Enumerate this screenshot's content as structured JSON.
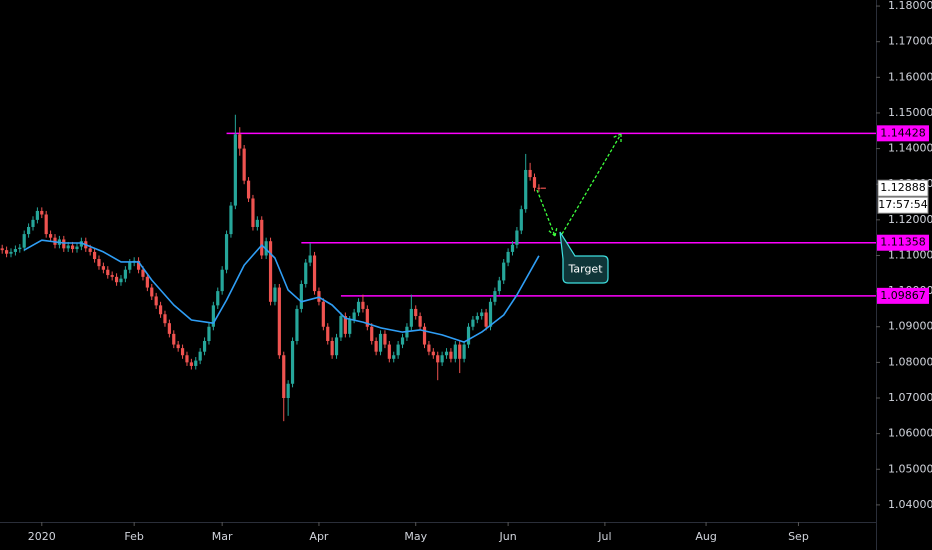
{
  "chart_data": {
    "type": "candlestick",
    "up_color": "#26a69a",
    "down_color": "#ef5350",
    "xlim": [
      -0.5,
      198.4
    ],
    "ylim": [
      1.0352,
      1.1817
    ],
    "xticks": [
      {
        "value": 9,
        "label": "2020"
      },
      {
        "value": 30,
        "label": "Feb"
      },
      {
        "value": 50,
        "label": "Mar"
      },
      {
        "value": 72,
        "label": "Apr"
      },
      {
        "value": 94,
        "label": "May"
      },
      {
        "value": 115,
        "label": "Jun"
      },
      {
        "value": 137,
        "label": "Jul"
      },
      {
        "value": 160,
        "label": "Aug"
      },
      {
        "value": 181,
        "label": "Sep"
      }
    ],
    "yticks": [
      {
        "value": 1.18,
        "label": "1.18000"
      },
      {
        "value": 1.17,
        "label": "1.17000"
      },
      {
        "value": 1.16,
        "label": "1.16000"
      },
      {
        "value": 1.15,
        "label": "1.15000"
      },
      {
        "value": 1.14,
        "label": "1.14000"
      },
      {
        "value": 1.13,
        "label": "1.13000"
      },
      {
        "value": 1.12,
        "label": "1.12000"
      },
      {
        "value": 1.11,
        "label": "1.11000"
      },
      {
        "value": 1.1,
        "label": "1.10000"
      },
      {
        "value": 1.09,
        "label": "1.09000"
      },
      {
        "value": 1.08,
        "label": "1.08000"
      },
      {
        "value": 1.07,
        "label": "1.07000"
      },
      {
        "value": 1.06,
        "label": "1.06000"
      },
      {
        "value": 1.05,
        "label": "1.05000"
      },
      {
        "value": 1.04,
        "label": "1.04000"
      }
    ],
    "open": [
      1.112,
      1.1115,
      1.1105,
      1.111,
      1.1118,
      1.1122,
      1.116,
      1.118,
      1.12,
      1.1225,
      1.1215,
      1.116,
      1.115,
      1.113,
      1.1145,
      1.112,
      1.1128,
      1.1118,
      1.1125,
      1.114,
      1.112,
      1.111,
      1.109,
      1.107,
      1.106,
      1.1045,
      1.104,
      1.1025,
      1.1035,
      1.106,
      1.108,
      1.1085,
      1.106,
      1.104,
      1.101,
      1.0985,
      1.096,
      1.0935,
      1.091,
      1.088,
      1.085,
      1.084,
      1.082,
      1.08,
      1.079,
      1.0805,
      1.083,
      1.086,
      1.09,
      1.096,
      1.1,
      1.106,
      1.116,
      1.124,
      1.144,
      1.14,
      1.131,
      1.126,
      1.118,
      1.12,
      1.11,
      1.114,
      1.097,
      1.101,
      1.082,
      1.07,
      1.074,
      1.086,
      1.095,
      1.102,
      1.108,
      1.11,
      1.1,
      1.097,
      1.09,
      1.086,
      1.082,
      1.087,
      1.093,
      1.088,
      1.092,
      1.094,
      1.097,
      1.095,
      1.09,
      1.086,
      1.083,
      1.088,
      1.085,
      1.081,
      1.082,
      1.085,
      1.087,
      1.09,
      1.095,
      1.093,
      1.09,
      1.085,
      1.083,
      1.082,
      1.08,
      1.082,
      1.083,
      1.081,
      1.085,
      1.081,
      1.085,
      1.09,
      1.092,
      1.093,
      1.094,
      1.09,
      1.097,
      1.1,
      1.103,
      1.108,
      1.111,
      1.113,
      1.117,
      1.123,
      1.134,
      1.132,
      1.129
    ],
    "high": [
      1.113,
      1.1125,
      1.112,
      1.1128,
      1.1132,
      1.117,
      1.119,
      1.121,
      1.1235,
      1.1235,
      1.1225,
      1.117,
      1.116,
      1.1155,
      1.1155,
      1.1138,
      1.1138,
      1.1135,
      1.115,
      1.115,
      1.113,
      1.112,
      1.11,
      1.108,
      1.107,
      1.1055,
      1.105,
      1.1045,
      1.107,
      1.109,
      1.1095,
      1.1095,
      1.107,
      1.105,
      1.102,
      1.0995,
      1.097,
      1.0945,
      1.092,
      1.089,
      1.086,
      1.085,
      1.083,
      1.081,
      1.0815,
      1.084,
      1.087,
      1.091,
      1.097,
      1.101,
      1.107,
      1.117,
      1.125,
      1.1495,
      1.146,
      1.141,
      1.132,
      1.127,
      1.121,
      1.121,
      1.115,
      1.115,
      1.102,
      1.102,
      1.083,
      1.075,
      1.087,
      1.096,
      1.103,
      1.109,
      1.1135,
      1.111,
      1.101,
      1.098,
      1.091,
      1.087,
      1.088,
      1.094,
      1.094,
      1.093,
      1.095,
      1.098,
      1.099,
      1.096,
      1.091,
      1.087,
      1.089,
      1.089,
      1.086,
      1.083,
      1.086,
      1.088,
      1.091,
      1.099,
      1.096,
      1.094,
      1.091,
      1.086,
      1.084,
      1.083,
      1.083,
      1.084,
      1.084,
      1.086,
      1.086,
      1.086,
      1.091,
      1.093,
      1.094,
      1.095,
      1.095,
      1.098,
      1.101,
      1.104,
      1.109,
      1.112,
      1.114,
      1.118,
      1.124,
      1.1385,
      1.136,
      1.133,
      1.13
    ],
    "low": [
      1.1105,
      1.1095,
      1.1095,
      1.11,
      1.1108,
      1.1112,
      1.115,
      1.117,
      1.119,
      1.1205,
      1.115,
      1.114,
      1.112,
      1.112,
      1.111,
      1.111,
      1.1108,
      1.1108,
      1.1115,
      1.111,
      1.11,
      1.108,
      1.106,
      1.105,
      1.1035,
      1.103,
      1.1015,
      1.1015,
      1.1025,
      1.105,
      1.107,
      1.105,
      1.103,
      1.1,
      1.0975,
      1.095,
      1.0925,
      1.09,
      1.087,
      1.084,
      1.083,
      1.081,
      1.079,
      1.078,
      1.078,
      1.0795,
      1.082,
      1.085,
      1.089,
      1.095,
      1.099,
      1.105,
      1.115,
      1.123,
      1.138,
      1.13,
      1.125,
      1.117,
      1.117,
      1.109,
      1.109,
      1.096,
      1.096,
      1.081,
      1.0635,
      1.065,
      1.073,
      1.085,
      1.094,
      1.101,
      1.107,
      1.099,
      1.096,
      1.089,
      1.085,
      1.081,
      1.081,
      1.086,
      1.087,
      1.087,
      1.091,
      1.093,
      1.094,
      1.089,
      1.085,
      1.082,
      1.082,
      1.084,
      1.08,
      1.08,
      1.081,
      1.084,
      1.086,
      1.089,
      1.092,
      1.089,
      1.084,
      1.082,
      1.081,
      1.075,
      1.079,
      1.081,
      1.08,
      1.08,
      1.077,
      1.08,
      1.084,
      1.089,
      1.091,
      1.092,
      1.089,
      1.089,
      1.096,
      1.099,
      1.102,
      1.107,
      1.11,
      1.112,
      1.116,
      1.122,
      1.131,
      1.128,
      1.1279
    ],
    "close": [
      1.1115,
      1.1105,
      1.111,
      1.1118,
      1.1122,
      1.116,
      1.118,
      1.12,
      1.1225,
      1.1215,
      1.116,
      1.115,
      1.113,
      1.1145,
      1.112,
      1.1128,
      1.1118,
      1.1125,
      1.114,
      1.112,
      1.111,
      1.109,
      1.107,
      1.106,
      1.1045,
      1.104,
      1.1025,
      1.1035,
      1.106,
      1.108,
      1.1085,
      1.106,
      1.104,
      1.101,
      1.0985,
      1.096,
      1.0935,
      1.091,
      1.088,
      1.085,
      1.084,
      1.082,
      1.08,
      1.079,
      1.0805,
      1.083,
      1.086,
      1.09,
      1.096,
      1.1,
      1.106,
      1.116,
      1.124,
      1.144,
      1.14,
      1.131,
      1.126,
      1.118,
      1.12,
      1.11,
      1.114,
      1.097,
      1.101,
      1.082,
      1.07,
      1.074,
      1.086,
      1.095,
      1.102,
      1.108,
      1.11,
      1.1,
      1.097,
      1.09,
      1.086,
      1.082,
      1.087,
      1.093,
      1.088,
      1.092,
      1.094,
      1.097,
      1.095,
      1.09,
      1.086,
      1.083,
      1.088,
      1.085,
      1.081,
      1.082,
      1.085,
      1.087,
      1.09,
      1.095,
      1.093,
      1.09,
      1.085,
      1.083,
      1.082,
      1.08,
      1.082,
      1.083,
      1.081,
      1.085,
      1.081,
      1.085,
      1.09,
      1.092,
      1.093,
      1.094,
      1.09,
      1.097,
      1.1,
      1.103,
      1.108,
      1.111,
      1.113,
      1.117,
      1.123,
      1.134,
      1.132,
      1.129,
      1.1289
    ],
    "ma": {
      "color": "#2f9ef5",
      "x": [
        5,
        9,
        14,
        18,
        23,
        27,
        31,
        34,
        39,
        43,
        48,
        51,
        55,
        59,
        62,
        65,
        68,
        72,
        75,
        78,
        82,
        86,
        91,
        95,
        100,
        105,
        109,
        114,
        117,
        122
      ],
      "values": [
        1.1115,
        1.1143,
        1.1135,
        1.1135,
        1.111,
        1.1082,
        1.1082,
        1.1031,
        1.0961,
        1.0919,
        1.091,
        1.0975,
        1.1073,
        1.1129,
        1.1093,
        1.1003,
        1.097,
        1.0983,
        1.0961,
        1.0924,
        1.0913,
        1.0897,
        1.0885,
        1.0891,
        1.0877,
        1.0857,
        1.0885,
        1.0933,
        1.0989,
        1.1099
      ]
    },
    "level_color": "#ff00ff",
    "levels": [
      {
        "value": 1.14428,
        "start": 51
      },
      {
        "value": 1.11358,
        "start": 68
      },
      {
        "value": 1.09867,
        "start": 77
      }
    ],
    "last_price": 1.12888,
    "countdown": "17:57:54",
    "annotation": "Target"
  }
}
